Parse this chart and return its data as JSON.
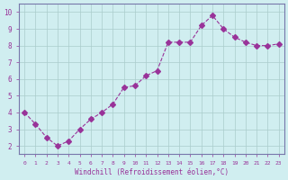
{
  "x": [
    0,
    1,
    2,
    3,
    4,
    5,
    6,
    7,
    8,
    9,
    10,
    11,
    12,
    13,
    14,
    15,
    16,
    17,
    18,
    19,
    20,
    21,
    22,
    23
  ],
  "y": [
    4.0,
    3.3,
    2.5,
    2.0,
    2.3,
    3.0,
    3.6,
    4.0,
    4.5,
    5.5,
    5.6,
    6.2,
    6.5,
    8.2,
    8.2,
    8.2,
    9.2,
    9.8,
    9.0,
    8.5,
    8.2,
    8.0,
    8.0,
    8.1
  ],
  "line_color": "#993399",
  "marker": "D",
  "marker_size": 3,
  "bg_color": "#d0eef0",
  "grid_color": "#aacccc",
  "axis_label_color": "#993399",
  "tick_label_color": "#993399",
  "xlabel": "Windchill (Refroidissement éolien,°C)",
  "xlim": [
    -0.5,
    23.5
  ],
  "ylim": [
    1.5,
    10.5
  ],
  "yticks": [
    2,
    3,
    4,
    5,
    6,
    7,
    8,
    9,
    10
  ],
  "xticks": [
    0,
    1,
    2,
    3,
    4,
    5,
    6,
    7,
    8,
    9,
    10,
    11,
    12,
    13,
    14,
    15,
    16,
    17,
    18,
    19,
    20,
    21,
    22,
    23
  ],
  "border_color": "#7777aa"
}
